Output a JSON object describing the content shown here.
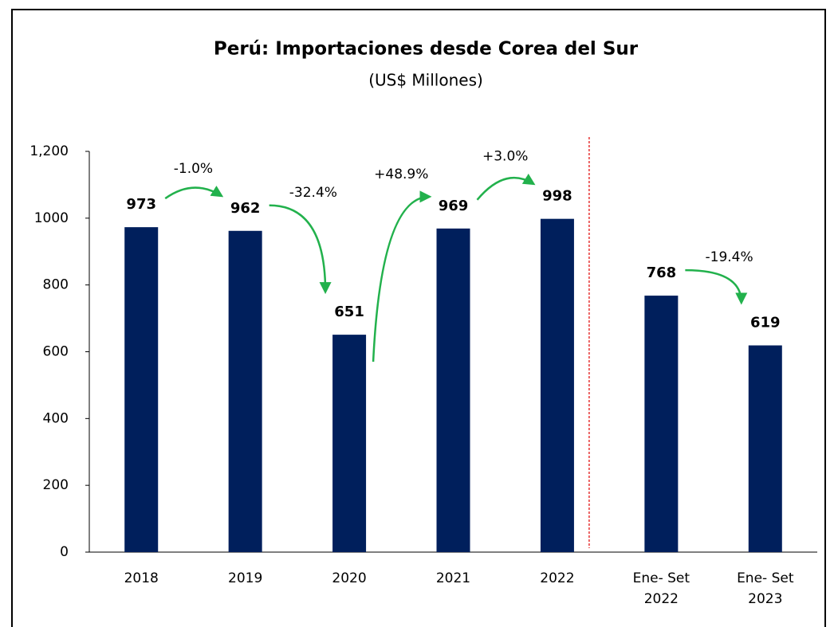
{
  "chart_data": {
    "type": "bar",
    "title": "Perú: Importaciones desde Corea del Sur",
    "subtitle": "(US$ Millones)",
    "categories": [
      "2018",
      "2019",
      "2020",
      "2021",
      "2022",
      "Ene- Set\n2022",
      "Ene- Set\n2023"
    ],
    "values": [
      973,
      962,
      651,
      969,
      998,
      768,
      619
    ],
    "changes": [
      "-1.0%",
      "-32.4%",
      "+48.9%",
      "+3.0%",
      null,
      "-19.4%"
    ],
    "color": "#001f5c",
    "change_color": "#22b14c",
    "ylim": [
      0,
      1200
    ],
    "yticks": [
      0,
      200,
      400,
      600,
      800,
      1000,
      {
        "value": 1200,
        "label": "1,200"
      }
    ],
    "grid": false
  }
}
